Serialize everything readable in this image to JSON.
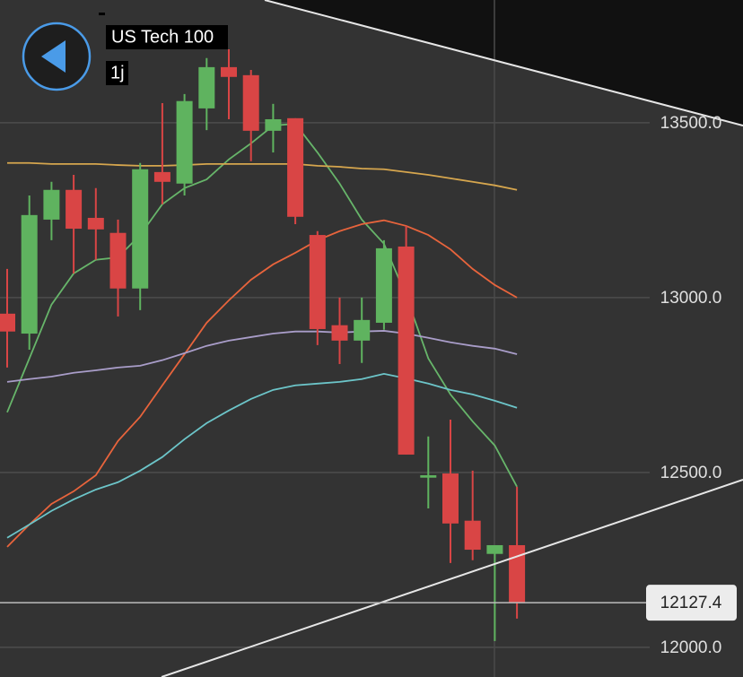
{
  "chart_data": {
    "type": "candlestick",
    "title": "US Tech 100",
    "subtitle": "1j",
    "categories": [
      null,
      null,
      null,
      null,
      null,
      null,
      null,
      null,
      null,
      null,
      null,
      null,
      null,
      null,
      null,
      null,
      null,
      null,
      null,
      null,
      null,
      null,
      null,
      null
    ],
    "open": [
      12954,
      12897,
      13223,
      13308,
      13228,
      13185,
      13026,
      13359,
      13326,
      13541,
      13659,
      13636,
      13477,
      13513,
      13179,
      12921,
      12877,
      12928,
      13146,
      12485,
      12497,
      12362,
      12267,
      12292
    ],
    "high": [
      13082,
      13292,
      13331,
      13351,
      13313,
      13223,
      13385,
      13556,
      13582,
      13685,
      13710,
      13651,
      13554,
      13513,
      13190,
      13000,
      13000,
      13164,
      13205,
      12603,
      12651,
      12505,
      12292,
      12459
    ],
    "low": [
      12800,
      12851,
      13164,
      13069,
      13108,
      12946,
      12964,
      13267,
      13292,
      13479,
      13510,
      13390,
      13415,
      13210,
      12864,
      12810,
      12813,
      12908,
      12551,
      12397,
      12241,
      12249,
      12018,
      12082
    ],
    "close": [
      12903,
      13236,
      13308,
      13197,
      13195,
      13026,
      13367,
      13331,
      13562,
      13659,
      13631,
      13477,
      13510,
      13231,
      12910,
      12877,
      12936,
      13141,
      12551,
      12492,
      12354,
      12279,
      12292,
      12127.4
    ],
    "up_color": "#5fb35f",
    "down_color": "#d94545",
    "series": [
      {
        "color": "#67b56a",
        "values": [
          12672,
          12826,
          12980,
          13069,
          13108,
          13115,
          13179,
          13267,
          13313,
          13338,
          13395,
          13441,
          13492,
          13497,
          13415,
          13326,
          13223,
          13154,
          13005,
          12826,
          12723,
          12646,
          12577,
          12459
        ]
      },
      {
        "color": "#e8643c",
        "values": [
          12287,
          12351,
          12410,
          12446,
          12492,
          12590,
          12659,
          12749,
          12838,
          12928,
          12992,
          13051,
          13095,
          13128,
          13164,
          13190,
          13210,
          13221,
          13205,
          13179,
          13138,
          13082,
          13036,
          13000
        ]
      },
      {
        "color": "#d6a64e",
        "values": [
          13385,
          13385,
          13382,
          13382,
          13382,
          13379,
          13377,
          13377,
          13379,
          13382,
          13382,
          13382,
          13382,
          13382,
          13377,
          13374,
          13369,
          13367,
          13359,
          13351,
          13341,
          13331,
          13321,
          13308
        ]
      },
      {
        "color": "#a99dc9",
        "values": [
          12759,
          12767,
          12774,
          12785,
          12792,
          12800,
          12805,
          12821,
          12841,
          12862,
          12877,
          12887,
          12897,
          12903,
          12903,
          12900,
          12903,
          12905,
          12897,
          12885,
          12872,
          12862,
          12854,
          12838
        ]
      },
      {
        "color": "#6cc5c9",
        "values": [
          12313,
          12351,
          12390,
          12423,
          12451,
          12472,
          12505,
          12544,
          12595,
          12641,
          12677,
          12710,
          12736,
          12749,
          12754,
          12759,
          12767,
          12782,
          12769,
          12754,
          12736,
          12723,
          12705,
          12685
        ]
      }
    ],
    "current_price": 12127.4,
    "ylim": [
      11915,
      13851
    ],
    "yticks": [
      {
        "value": 12000,
        "label": "12000.0"
      },
      {
        "value": 12500,
        "label": "12500.0"
      },
      {
        "value": 13000,
        "label": "13000.0"
      },
      {
        "value": 13500,
        "label": "13500.0"
      }
    ],
    "grid": true
  }
}
